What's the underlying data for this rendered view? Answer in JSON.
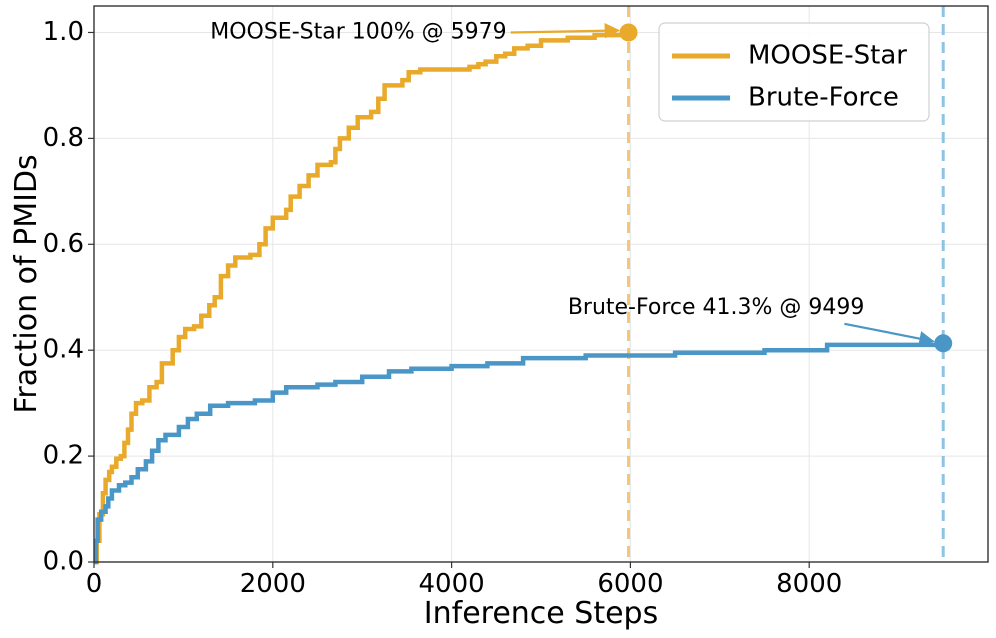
{
  "chart_data": {
    "type": "line",
    "title": "",
    "xlabel": "Inference Steps",
    "ylabel": "Fraction of PMIDs",
    "xlim": [
      0,
      10000
    ],
    "ylim": [
      0,
      1.05
    ],
    "xticks": [
      0,
      2000,
      4000,
      6000,
      8000
    ],
    "xtick_labels": [
      "0",
      "2000",
      "4000",
      "6000",
      "8000"
    ],
    "yticks": [
      0.0,
      0.2,
      0.4,
      0.6,
      0.8,
      1.0
    ],
    "ytick_labels": [
      "0.0",
      "0.2",
      "0.4",
      "0.6",
      "0.8",
      "1.0"
    ],
    "grid": true,
    "legend_position": "top-right",
    "series": [
      {
        "name": "MOOSE-Star",
        "color": "#E9A92A",
        "step": true,
        "points": [
          [
            0,
            0.0
          ],
          [
            30,
            0.04
          ],
          [
            60,
            0.09
          ],
          [
            100,
            0.13
          ],
          [
            130,
            0.155
          ],
          [
            170,
            0.17
          ],
          [
            200,
            0.18
          ],
          [
            250,
            0.195
          ],
          [
            300,
            0.2
          ],
          [
            340,
            0.225
          ],
          [
            380,
            0.25
          ],
          [
            420,
            0.28
          ],
          [
            470,
            0.3
          ],
          [
            540,
            0.305
          ],
          [
            620,
            0.33
          ],
          [
            700,
            0.34
          ],
          [
            760,
            0.375
          ],
          [
            880,
            0.4
          ],
          [
            950,
            0.425
          ],
          [
            1020,
            0.44
          ],
          [
            1120,
            0.445
          ],
          [
            1200,
            0.465
          ],
          [
            1290,
            0.485
          ],
          [
            1350,
            0.5
          ],
          [
            1420,
            0.54
          ],
          [
            1500,
            0.56
          ],
          [
            1580,
            0.575
          ],
          [
            1750,
            0.58
          ],
          [
            1850,
            0.6
          ],
          [
            1920,
            0.63
          ],
          [
            2000,
            0.65
          ],
          [
            2150,
            0.665
          ],
          [
            2200,
            0.69
          ],
          [
            2300,
            0.71
          ],
          [
            2400,
            0.73
          ],
          [
            2500,
            0.75
          ],
          [
            2650,
            0.755
          ],
          [
            2700,
            0.78
          ],
          [
            2750,
            0.8
          ],
          [
            2850,
            0.82
          ],
          [
            2950,
            0.84
          ],
          [
            3100,
            0.85
          ],
          [
            3180,
            0.875
          ],
          [
            3250,
            0.9
          ],
          [
            3450,
            0.91
          ],
          [
            3520,
            0.925
          ],
          [
            3650,
            0.93
          ],
          [
            4100,
            0.93
          ],
          [
            4200,
            0.935
          ],
          [
            4300,
            0.94
          ],
          [
            4380,
            0.945
          ],
          [
            4500,
            0.955
          ],
          [
            4600,
            0.96
          ],
          [
            4700,
            0.97
          ],
          [
            4850,
            0.975
          ],
          [
            5000,
            0.985
          ],
          [
            5300,
            0.99
          ],
          [
            5600,
            0.995
          ],
          [
            5979,
            1.0
          ]
        ]
      },
      {
        "name": "Brute-Force",
        "color": "#4A97C7",
        "step": true,
        "points": [
          [
            0,
            0.0
          ],
          [
            20,
            0.04
          ],
          [
            40,
            0.08
          ],
          [
            80,
            0.095
          ],
          [
            130,
            0.105
          ],
          [
            160,
            0.12
          ],
          [
            200,
            0.135
          ],
          [
            280,
            0.145
          ],
          [
            350,
            0.15
          ],
          [
            420,
            0.16
          ],
          [
            490,
            0.175
          ],
          [
            580,
            0.19
          ],
          [
            650,
            0.21
          ],
          [
            720,
            0.23
          ],
          [
            800,
            0.24
          ],
          [
            950,
            0.255
          ],
          [
            1050,
            0.27
          ],
          [
            1150,
            0.28
          ],
          [
            1300,
            0.295
          ],
          [
            1500,
            0.3
          ],
          [
            1800,
            0.305
          ],
          [
            2000,
            0.32
          ],
          [
            2150,
            0.33
          ],
          [
            2500,
            0.335
          ],
          [
            2700,
            0.34
          ],
          [
            3000,
            0.35
          ],
          [
            3300,
            0.36
          ],
          [
            3550,
            0.365
          ],
          [
            4000,
            0.37
          ],
          [
            4400,
            0.375
          ],
          [
            4800,
            0.385
          ],
          [
            5500,
            0.39
          ],
          [
            6500,
            0.395
          ],
          [
            7500,
            0.4
          ],
          [
            8200,
            0.41
          ],
          [
            9499,
            0.413
          ]
        ]
      }
    ],
    "reference_lines": [
      {
        "axis": "x",
        "value": 5979,
        "color": "#F5C57A",
        "style": "dashed"
      },
      {
        "axis": "x",
        "value": 9499,
        "color": "#8CC4E3",
        "style": "dashed"
      }
    ],
    "markers": [
      {
        "series": "MOOSE-Star",
        "x": 5979,
        "y": 1.0
      },
      {
        "series": "Brute-Force",
        "x": 9499,
        "y": 0.413
      }
    ],
    "annotations": [
      {
        "text": "MOOSE-Star 100% @ 5979",
        "target_x": 5979,
        "target_y": 1.0,
        "text_x": 1300,
        "text_y": 1.0,
        "color": "#E9A92A"
      },
      {
        "text": "Brute-Force 41.3% @ 9499",
        "target_x": 9499,
        "target_y": 0.413,
        "text_x": 5300,
        "text_y": 0.48,
        "color": "#4A97C7"
      }
    ]
  }
}
